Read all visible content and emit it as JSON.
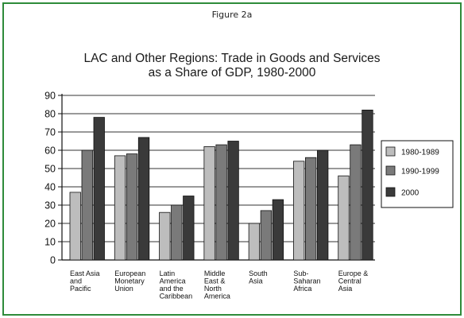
{
  "figure_label": "Figure 2a",
  "colors": {
    "frame_border": "#2e8b3a",
    "series_1980_1989": "#bdbdbd",
    "series_1990_1999": "#7a7a7a",
    "series_2000": "#3a3a3a"
  },
  "chart_data": {
    "type": "bar",
    "title_lines": [
      "LAC and Other Regions: Trade in Goods and Services",
      "as a Share of GDP, 1980-2000"
    ],
    "xlabel": "",
    "ylabel": "",
    "ylim": [
      0,
      90
    ],
    "yticks": [
      "0",
      "10",
      "20",
      "30",
      "40",
      "50",
      "60",
      "70",
      "80",
      "90"
    ],
    "grid": true,
    "legend_position": "right",
    "categories": [
      [
        "East Asia",
        "and",
        "Pacific"
      ],
      [
        "European",
        "Monetary",
        "Union"
      ],
      [
        "Latin",
        "America",
        "and the",
        "Caribbean"
      ],
      [
        "Middle",
        "East &",
        "North",
        "America"
      ],
      [
        "South",
        "Asia"
      ],
      [
        "Sub-",
        "Saharan",
        "Africa"
      ],
      [
        "Europe &",
        "Central",
        "Asia"
      ]
    ],
    "series": [
      {
        "name": "1980-1989",
        "values": [
          37,
          57,
          26,
          62,
          20,
          54,
          46
        ]
      },
      {
        "name": "1990-1999",
        "values": [
          60,
          58,
          30,
          63,
          27,
          56,
          63
        ]
      },
      {
        "name": "2000",
        "values": [
          78,
          67,
          35,
          65,
          33,
          60,
          82
        ]
      }
    ]
  }
}
